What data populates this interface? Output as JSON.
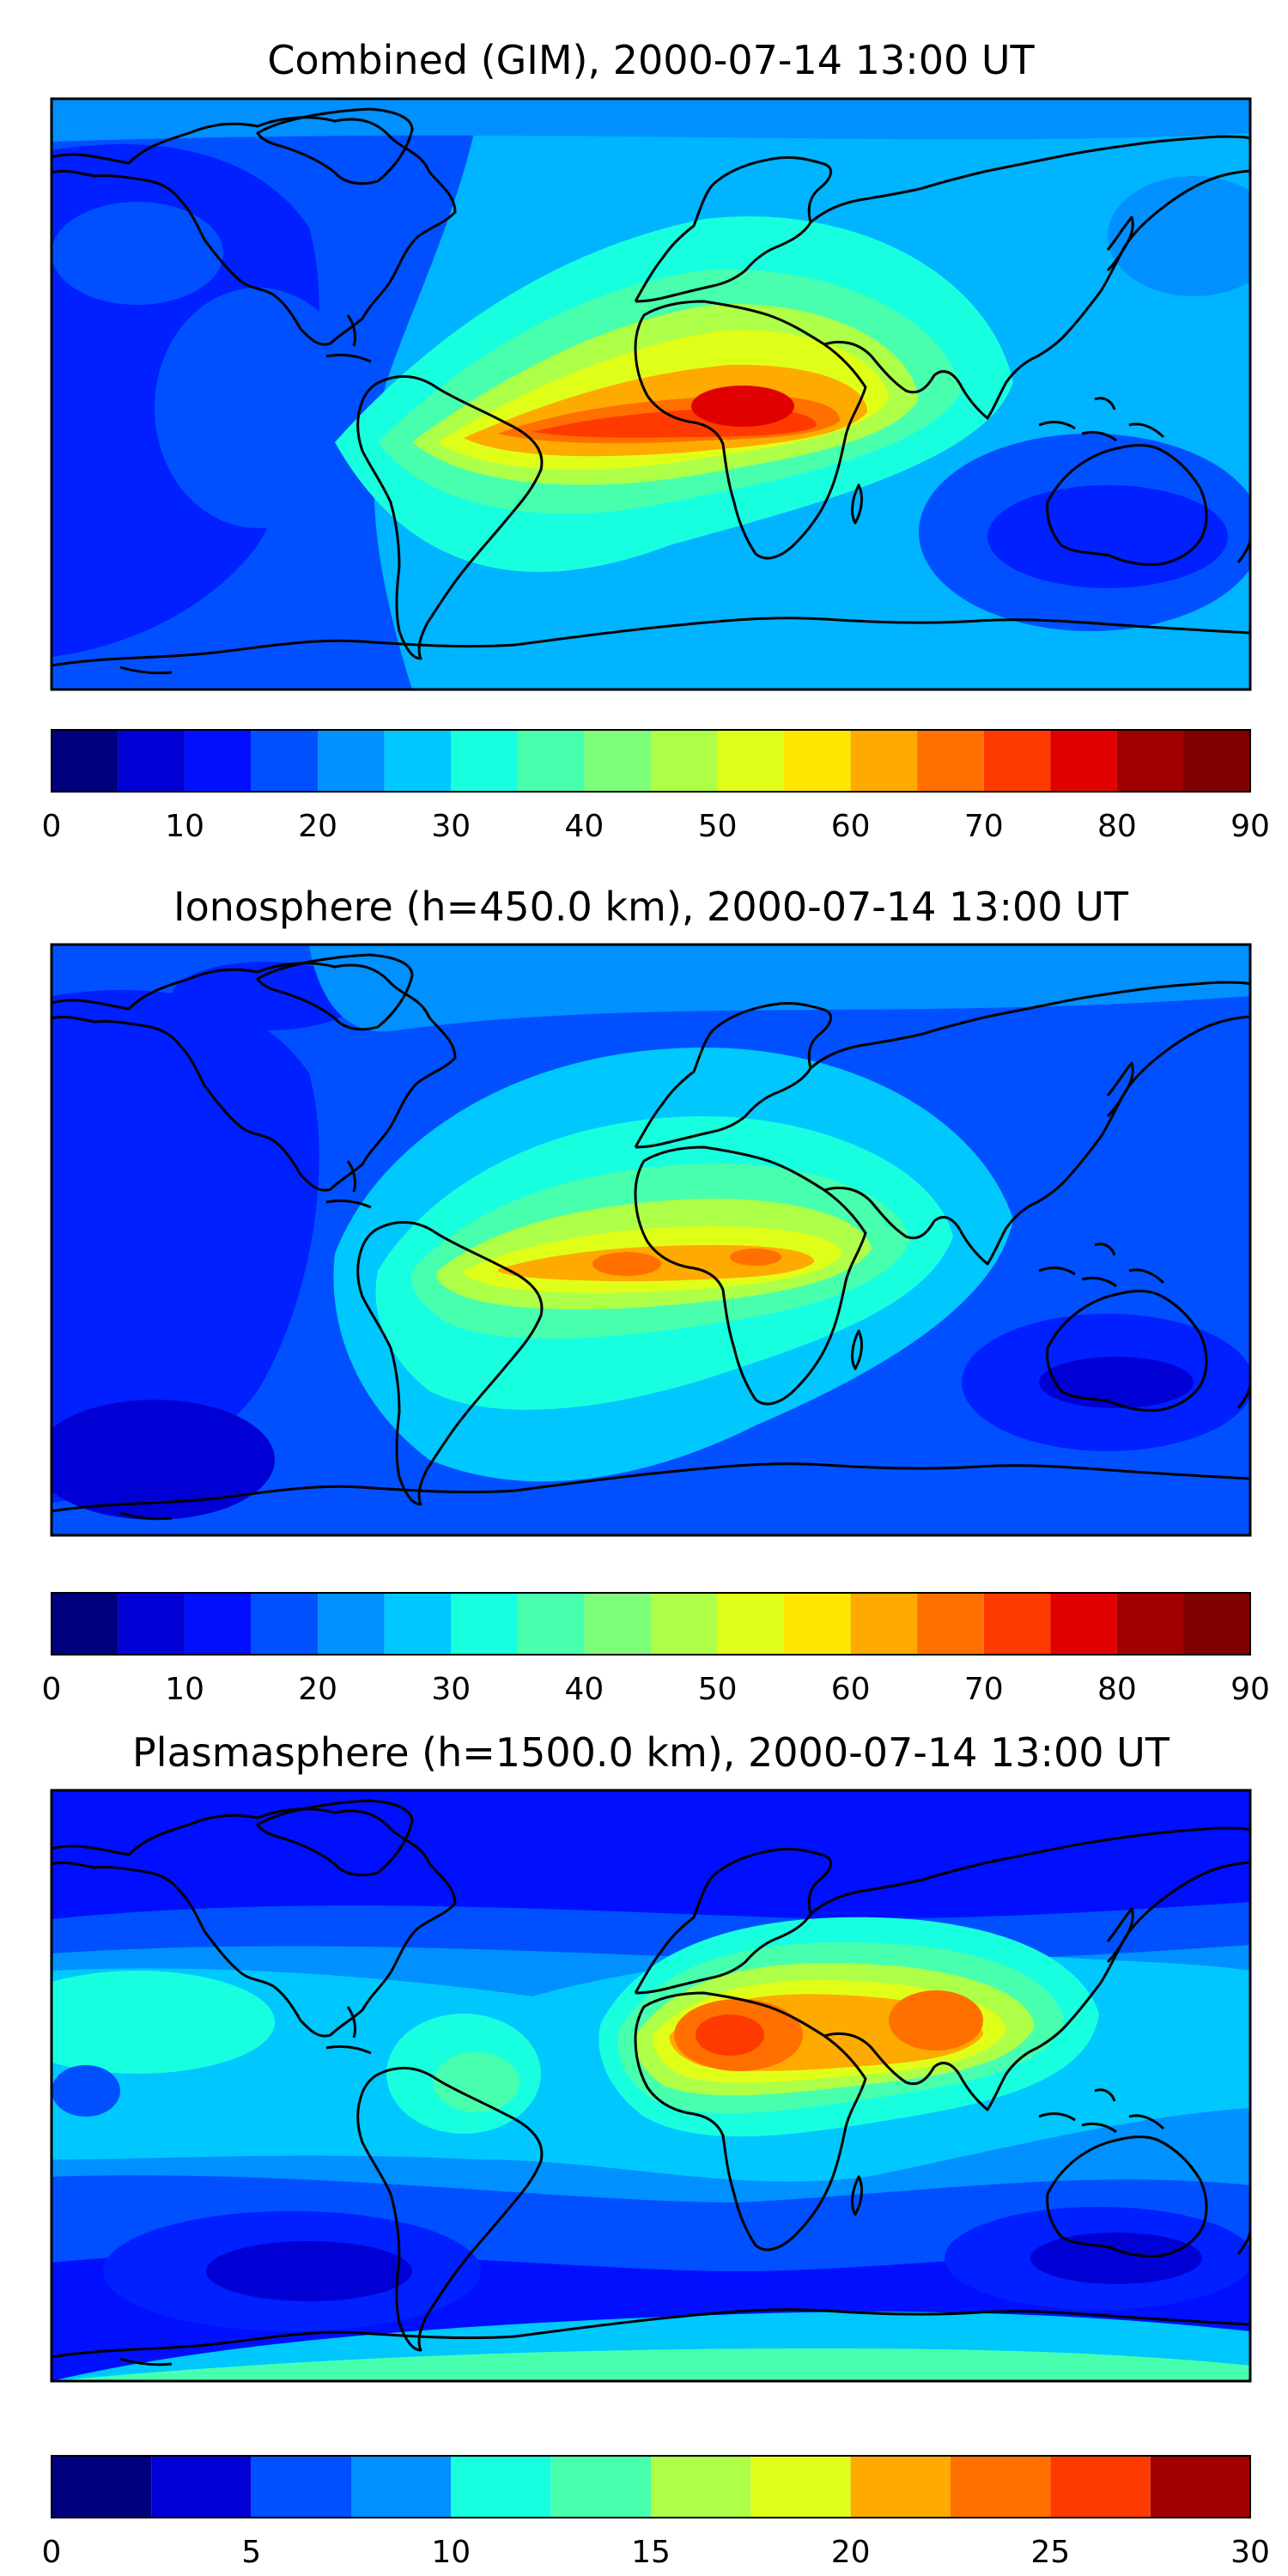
{
  "panels": [
    {
      "title": "Combined (GIM), 2000-07-14 13:00 UT",
      "colorbar": {
        "ticks": [
          "0",
          "10",
          "20",
          "30",
          "40",
          "50",
          "60",
          "70",
          "80",
          "90"
        ],
        "range": [
          0,
          90
        ],
        "step": 5
      }
    },
    {
      "title": "Ionosphere  (h=450.0 km), 2000-07-14 13:00 UT",
      "colorbar": {
        "ticks": [
          "0",
          "10",
          "20",
          "30",
          "40",
          "50",
          "60",
          "70",
          "80",
          "90"
        ],
        "range": [
          0,
          90
        ],
        "step": 5
      }
    },
    {
      "title": "Plasmasphere (h=1500.0 km), 2000-07-14 13:00 UT",
      "colorbar": {
        "ticks": [
          "0",
          "5",
          "10",
          "15",
          "20",
          "25",
          "30"
        ],
        "range": [
          0,
          30
        ],
        "step": 2.5
      }
    }
  ],
  "colormap": "jet",
  "colors": {
    "jet_levels": [
      "#00007f",
      "#0000d4",
      "#0010ff",
      "#0050ff",
      "#0090ff",
      "#00c8ff",
      "#18ffe0",
      "#48ffae",
      "#7dff7a",
      "#aeff48",
      "#e0ff18",
      "#ffe600",
      "#ffaa00",
      "#ff7000",
      "#ff3a00",
      "#e00000",
      "#a00000",
      "#800000"
    ],
    "coastline": "#000000",
    "frame": "#000000"
  }
}
